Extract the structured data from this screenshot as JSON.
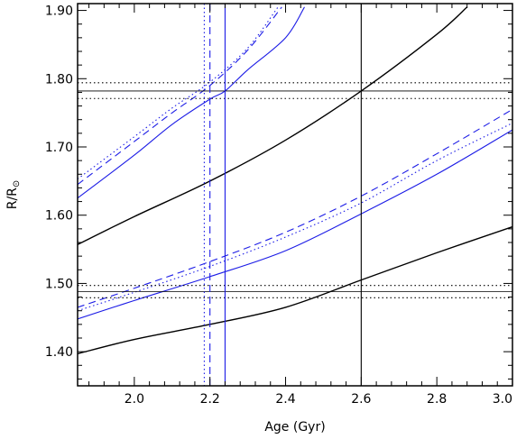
{
  "chart_data": {
    "type": "line",
    "xlabel": "Age (Gyr)",
    "ylabel": "R/R",
    "ylabel_symbol": "⊙",
    "xlim": [
      1.85,
      3.0
    ],
    "ylim": [
      1.35,
      1.91
    ],
    "xticks": [
      2.0,
      2.2,
      2.4,
      2.6,
      2.8,
      3.0
    ],
    "xtick_labels": [
      "2.0",
      "2.2",
      "2.4",
      "2.6",
      "2.8",
      "3.0"
    ],
    "yticks": [
      1.4,
      1.5,
      1.6,
      1.7,
      1.8,
      1.9
    ],
    "ytick_labels": [
      "1.40",
      "1.50",
      "1.60",
      "1.70",
      "1.80",
      "1.90"
    ],
    "grid": false,
    "colors": {
      "black": "#000000",
      "blue": "#1c1ce6"
    },
    "series": [
      {
        "group": "upper",
        "color": "black",
        "style": "solid",
        "x": [
          1.85,
          2.0,
          2.2,
          2.4,
          2.6,
          2.8,
          2.88
        ],
        "y": [
          1.557,
          1.598,
          1.65,
          1.71,
          1.782,
          1.865,
          1.905
        ]
      },
      {
        "group": "upper",
        "color": "blue",
        "style": "solid",
        "x": [
          1.85,
          2.0,
          2.1,
          2.2,
          2.24,
          2.3,
          2.4,
          2.45
        ],
        "y": [
          1.625,
          1.688,
          1.733,
          1.77,
          1.782,
          1.813,
          1.86,
          1.905
        ]
      },
      {
        "group": "upper",
        "color": "blue",
        "style": "dashed",
        "x": [
          1.85,
          2.0,
          2.1,
          2.2,
          2.3,
          2.39
        ],
        "y": [
          1.645,
          1.708,
          1.75,
          1.79,
          1.842,
          1.905
        ]
      },
      {
        "group": "upper",
        "color": "blue",
        "style": "dotted",
        "x": [
          1.85,
          2.0,
          2.1,
          2.2,
          2.3,
          2.38
        ],
        "y": [
          1.653,
          1.715,
          1.757,
          1.795,
          1.845,
          1.905
        ]
      },
      {
        "group": "lower",
        "color": "black",
        "style": "solid",
        "x": [
          1.85,
          2.0,
          2.2,
          2.4,
          2.6,
          2.8,
          3.0
        ],
        "y": [
          1.397,
          1.418,
          1.44,
          1.465,
          1.505,
          1.545,
          1.583
        ]
      },
      {
        "group": "lower",
        "color": "blue",
        "style": "solid",
        "x": [
          1.85,
          2.0,
          2.2,
          2.4,
          2.6,
          2.8,
          3.0
        ],
        "y": [
          1.448,
          1.475,
          1.51,
          1.548,
          1.602,
          1.66,
          1.725
        ]
      },
      {
        "group": "lower",
        "color": "blue",
        "style": "dashed",
        "x": [
          1.85,
          2.0,
          2.2,
          2.4,
          2.6,
          2.8,
          3.0
        ],
        "y": [
          1.465,
          1.493,
          1.532,
          1.575,
          1.628,
          1.69,
          1.755
        ]
      },
      {
        "group": "lower",
        "color": "blue",
        "style": "dotted",
        "x": [
          1.85,
          2.0,
          2.2,
          2.4,
          2.6,
          2.8,
          3.0
        ],
        "y": [
          1.46,
          1.487,
          1.525,
          1.568,
          1.618,
          1.68,
          1.735
        ]
      }
    ],
    "hlines": [
      {
        "y": 1.782,
        "color": "black",
        "style": "solid"
      },
      {
        "y": 1.794,
        "color": "black",
        "style": "dotted"
      },
      {
        "y": 1.771,
        "color": "black",
        "style": "dotted"
      },
      {
        "y": 1.488,
        "color": "black",
        "style": "solid"
      },
      {
        "y": 1.497,
        "color": "black",
        "style": "dotted"
      },
      {
        "y": 1.479,
        "color": "black",
        "style": "dotted"
      }
    ],
    "vlines": [
      {
        "x": 2.6,
        "color": "black",
        "style": "solid"
      },
      {
        "x": 2.24,
        "color": "blue",
        "style": "solid"
      },
      {
        "x": 2.2,
        "color": "blue",
        "style": "dashed"
      },
      {
        "x": 2.185,
        "color": "blue",
        "style": "dotted"
      }
    ]
  }
}
